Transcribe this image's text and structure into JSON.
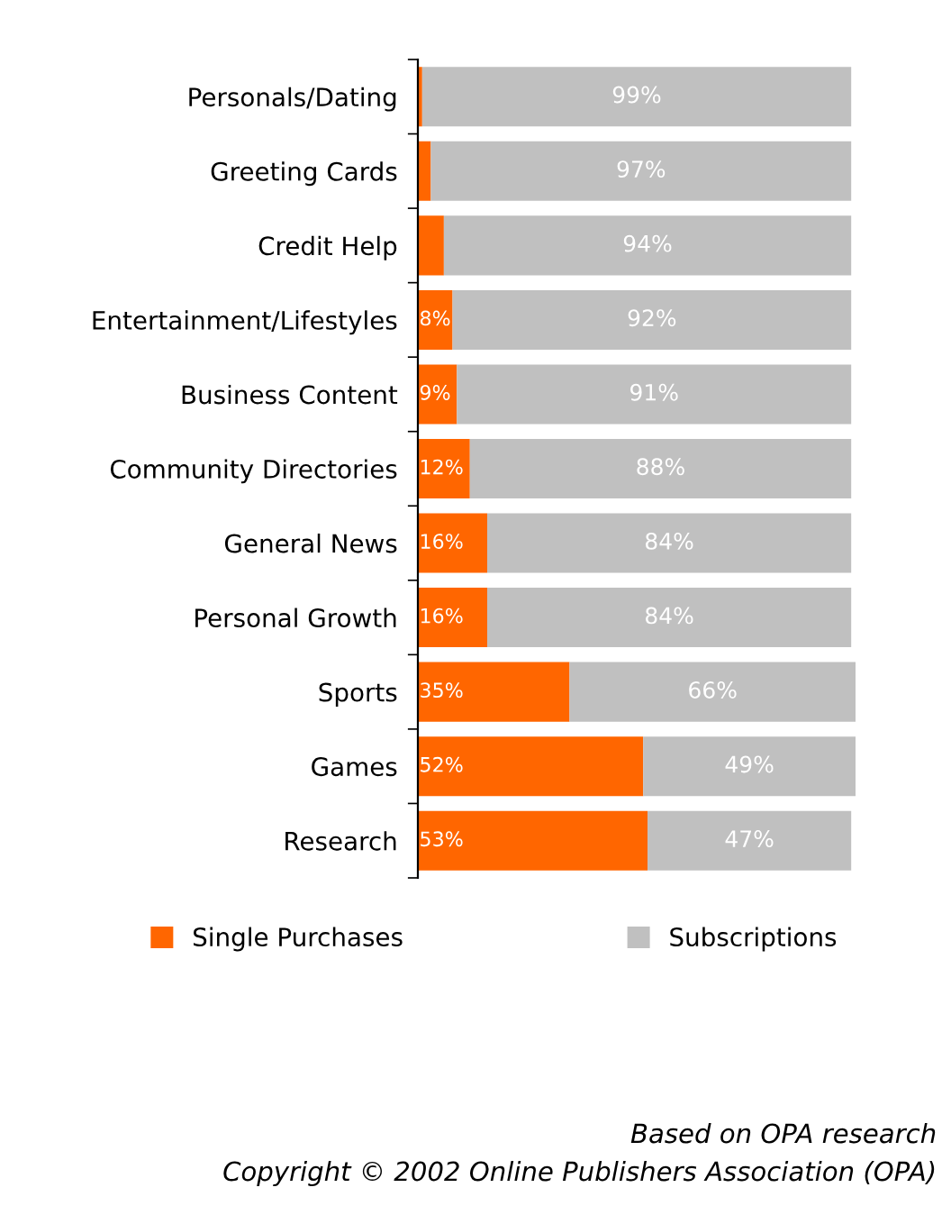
{
  "chart_data": {
    "type": "bar",
    "orientation": "horizontal",
    "stacked": true,
    "categories": [
      "Personals/Dating",
      "Greeting Cards",
      "Credit Help",
      "Entertainment/Lifestyles",
      "Business Content",
      "Community Directories",
      "General News",
      "Personal Growth",
      "Sports",
      "Games",
      "Research"
    ],
    "series": [
      {
        "name": "Single Purchases",
        "color": "#ff6600",
        "values": [
          1,
          3,
          6,
          8,
          9,
          12,
          16,
          16,
          35,
          52,
          53
        ],
        "value_labels": [
          null,
          null,
          null,
          "8%",
          "9%",
          "12%",
          "16%",
          "16%",
          "35%",
          "52%",
          "53%"
        ]
      },
      {
        "name": "Subscriptions",
        "color": "#c0c0c0",
        "values": [
          99,
          97,
          94,
          92,
          91,
          88,
          84,
          84,
          66,
          49,
          47
        ],
        "value_labels": [
          "99%",
          "97%",
          "94%",
          "92%",
          "91%",
          "88%",
          "84%",
          "84%",
          "66%",
          "49%",
          "47%"
        ]
      }
    ],
    "xlim": [
      0,
      101
    ],
    "tick_labels": "y",
    "legend": "bottom",
    "grid": false,
    "annotations": [
      "Based on OPA research",
      "Copyright © 2002 Online Publishers Association (OPA)"
    ]
  }
}
